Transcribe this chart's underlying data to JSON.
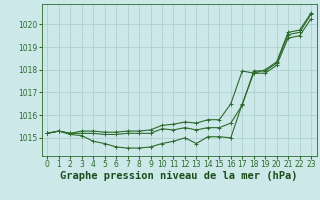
{
  "title": "Graphe pression niveau de la mer (hPa)",
  "background_color": "#cce8e8",
  "plot_bg_color": "#cce8e8",
  "line_color": "#2d6a2d",
  "grid_color": "#a8cccc",
  "xlabel_color": "#1a4d1a",
  "hours": [
    0,
    1,
    2,
    3,
    4,
    5,
    6,
    7,
    8,
    9,
    10,
    11,
    12,
    13,
    14,
    15,
    16,
    17,
    18,
    19,
    20,
    21,
    22,
    23
  ],
  "series1": [
    1015.2,
    1015.3,
    1015.15,
    1015.1,
    1014.85,
    1014.75,
    1014.6,
    1014.55,
    1014.55,
    1014.6,
    1014.75,
    1014.85,
    1015.0,
    1014.75,
    1015.05,
    1015.05,
    1015.0,
    1016.5,
    1017.85,
    1017.85,
    1018.2,
    1019.4,
    1019.5,
    1020.25
  ],
  "series2": [
    1015.2,
    1015.3,
    1015.2,
    1015.3,
    1015.3,
    1015.25,
    1015.25,
    1015.3,
    1015.3,
    1015.35,
    1015.55,
    1015.6,
    1015.7,
    1015.65,
    1015.8,
    1015.8,
    1016.5,
    1017.95,
    1017.85,
    1018.0,
    1018.35,
    1019.65,
    1019.75,
    1020.5
  ],
  "series3": [
    1015.2,
    1015.3,
    1015.2,
    1015.2,
    1015.2,
    1015.15,
    1015.15,
    1015.2,
    1015.2,
    1015.2,
    1015.4,
    1015.35,
    1015.45,
    1015.35,
    1015.45,
    1015.45,
    1015.65,
    1016.45,
    1017.95,
    1017.95,
    1018.3,
    1019.55,
    1019.65,
    1020.45
  ],
  "ylim": [
    1014.2,
    1020.9
  ],
  "yticks": [
    1015,
    1016,
    1017,
    1018,
    1019,
    1020
  ],
  "xlim": [
    -0.5,
    23.5
  ],
  "xticks": [
    0,
    1,
    2,
    3,
    4,
    5,
    6,
    7,
    8,
    9,
    10,
    11,
    12,
    13,
    14,
    15,
    16,
    17,
    18,
    19,
    20,
    21,
    22,
    23
  ],
  "tick_fontsize": 5.5,
  "title_fontsize": 7.5,
  "marker": "+",
  "marker_size": 3.5,
  "linewidth": 0.8
}
